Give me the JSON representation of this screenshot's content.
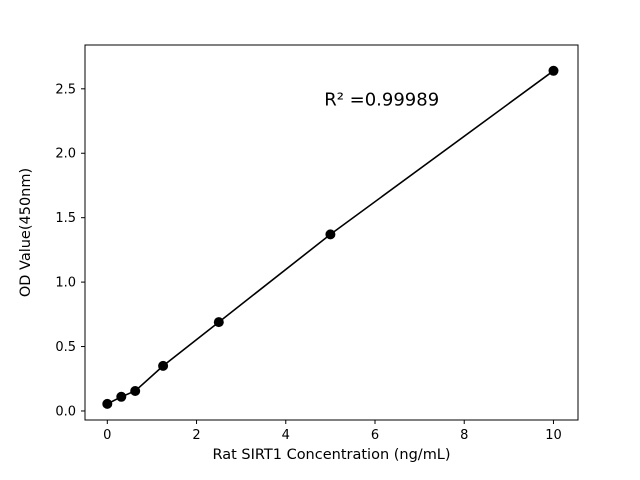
{
  "chart_data": {
    "type": "line",
    "x": [
      0,
      0.3125,
      0.625,
      1.25,
      2.5,
      5,
      10
    ],
    "y": [
      0.055,
      0.11,
      0.155,
      0.35,
      0.69,
      1.37,
      2.64
    ],
    "title": "",
    "xlabel": "Rat SIRT1 Concentration (ng/mL)",
    "ylabel": "OD Value(450nm)",
    "xlim": [
      -0.5,
      10.55
    ],
    "ylim": [
      -0.07,
      2.84
    ],
    "xticks": [
      0,
      2,
      4,
      6,
      8,
      10
    ],
    "yticks": [
      0.0,
      0.5,
      1.0,
      1.5,
      2.0,
      2.5
    ],
    "annotation": {
      "text": "R² =0.99989",
      "x": 6.15,
      "y": 2.37
    },
    "line_color": "#000000",
    "marker_color": "#000000",
    "grid": "off",
    "legend": "none"
  }
}
